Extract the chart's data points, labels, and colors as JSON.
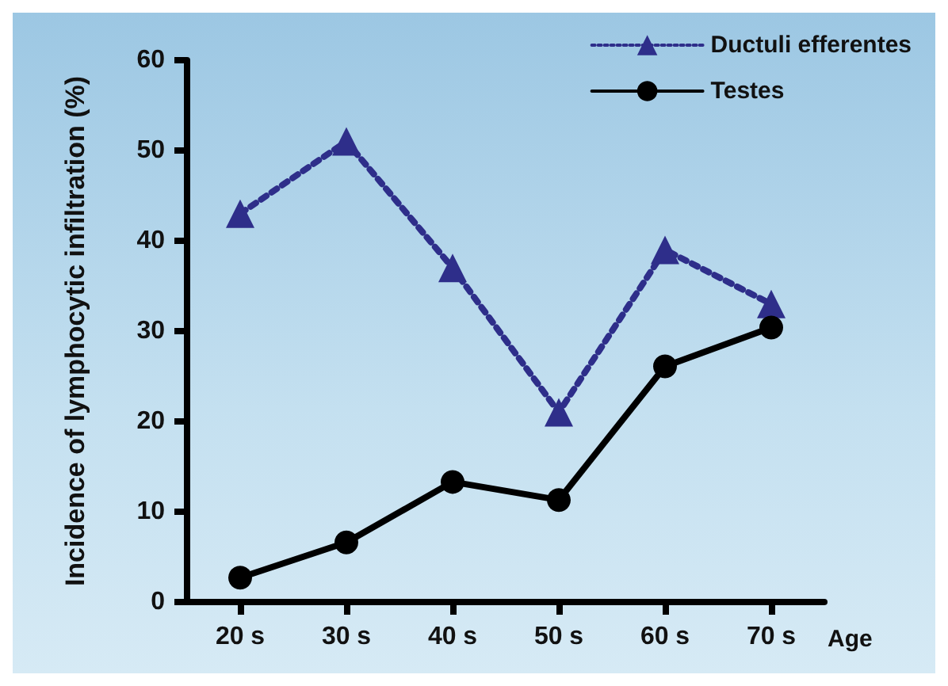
{
  "chart_data": {
    "type": "line",
    "xlabel": "Age",
    "ylabel": "Incidence of lymphocytic infiltration (%)",
    "categories": [
      "20 s",
      "30 s",
      "40 s",
      "50 s",
      "60 s",
      "70 s"
    ],
    "series": [
      {
        "name": "Ductuli efferentes",
        "color": "#2e2e8a",
        "marker": "triangle",
        "line_style": "dotted",
        "values": [
          43,
          51,
          37,
          21,
          39,
          33
        ]
      },
      {
        "name": "Testes",
        "color": "#000000",
        "marker": "circle",
        "line_style": "solid",
        "values": [
          2.7,
          6.6,
          13.3,
          11.3,
          26.1,
          30.4
        ]
      }
    ],
    "ylim": [
      0,
      60
    ],
    "yticks": [
      0,
      10,
      20,
      30,
      40,
      50,
      60
    ],
    "grid": false,
    "legend": "top right"
  }
}
